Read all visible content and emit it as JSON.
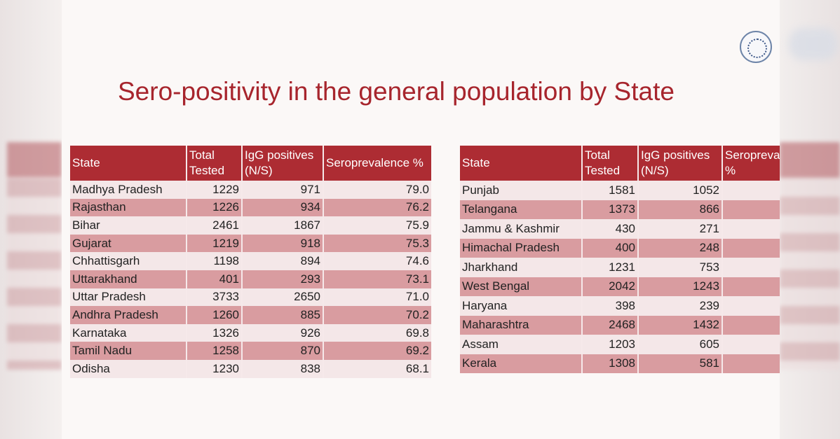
{
  "title": "Sero-positivity in the general population by State",
  "left_table": {
    "headers": [
      "State",
      "Total Tested",
      "IgG positives (N/S)",
      "Seroprevalence %"
    ],
    "rows": [
      [
        "Madhya Pradesh",
        "1229",
        "971",
        "79.0"
      ],
      [
        "Rajasthan",
        "1226",
        "934",
        "76.2"
      ],
      [
        "Bihar",
        "2461",
        "1867",
        "75.9"
      ],
      [
        "Gujarat",
        "1219",
        "918",
        "75.3"
      ],
      [
        "Chhattisgarh",
        "1198",
        "894",
        "74.6"
      ],
      [
        "Uttarakhand",
        "401",
        "293",
        "73.1"
      ],
      [
        "Uttar Pradesh",
        "3733",
        "2650",
        "71.0"
      ],
      [
        "Andhra Pradesh",
        "1260",
        "885",
        "70.2"
      ],
      [
        "Karnataka",
        "1326",
        "926",
        "69.8"
      ],
      [
        "Tamil Nadu",
        "1258",
        "870",
        "69.2"
      ],
      [
        "Odisha",
        "1230",
        "838",
        "68.1"
      ]
    ]
  },
  "right_table": {
    "headers": [
      "State",
      "Total Tested",
      "IgG positives (N/S)",
      "Seroprevalence %"
    ],
    "rows": [
      [
        "Punjab",
        "1581",
        "1052",
        ""
      ],
      [
        "Telangana",
        "1373",
        "866",
        ""
      ],
      [
        "Jammu & Kashmir",
        "430",
        "271",
        ""
      ],
      [
        "Himachal Pradesh",
        "400",
        "248",
        ""
      ],
      [
        "Jharkhand",
        "1231",
        "753",
        ""
      ],
      [
        "West Bengal",
        "2042",
        "1243",
        ""
      ],
      [
        "Haryana",
        "398",
        "239",
        ""
      ],
      [
        "Maharashtra",
        "2468",
        "1432",
        ""
      ],
      [
        "Assam",
        "1203",
        "605",
        ""
      ],
      [
        "Kerala",
        "1308",
        "581",
        ""
      ]
    ]
  },
  "colors": {
    "title": "#a7252d",
    "header_bg": "#ad2c33",
    "row_light": "#f4e7e8",
    "row_dark": "#d99ca0"
  },
  "icons": {
    "logo": "institution-seal-icon"
  }
}
